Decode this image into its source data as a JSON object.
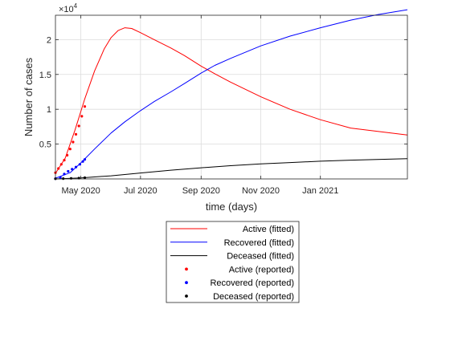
{
  "chart_data": {
    "type": "line",
    "title": "",
    "xlabel": "time (days)",
    "ylabel": "Number of cases",
    "y_exponent_label": "×10",
    "y_exponent_power": "4",
    "xlim": [
      "2020-04-05",
      "2021-03-31"
    ],
    "ylim": [
      0,
      23500
    ],
    "grid": true,
    "legend_position": "bottom-outside",
    "x_ticks": [
      {
        "label": "May 2020",
        "date": "2020-05-01"
      },
      {
        "label": "Jul 2020",
        "date": "2020-07-01"
      },
      {
        "label": "Sep 2020",
        "date": "2020-09-01"
      },
      {
        "label": "Nov 2020",
        "date": "2020-11-01"
      },
      {
        "label": "Jan 2021",
        "date": "2021-01-01"
      }
    ],
    "y_ticks": [
      {
        "label": "0.5",
        "value": 5000
      },
      {
        "label": "1",
        "value": 10000
      },
      {
        "label": "1.5",
        "value": 15000
      },
      {
        "label": "2",
        "value": 20000
      }
    ],
    "series": [
      {
        "name": "Active (fitted)",
        "style": "line",
        "color": "#ff0000",
        "x": [
          "2020-04-05",
          "2020-04-15",
          "2020-04-25",
          "2020-05-05",
          "2020-05-15",
          "2020-05-25",
          "2020-06-01",
          "2020-06-08",
          "2020-06-15",
          "2020-06-22",
          "2020-07-01",
          "2020-07-15",
          "2020-08-01",
          "2020-08-15",
          "2020-09-01",
          "2020-09-15",
          "2020-10-01",
          "2020-11-01",
          "2020-12-01",
          "2021-01-01",
          "2021-02-01",
          "2021-03-31"
        ],
        "y": [
          800,
          3000,
          7000,
          11500,
          15500,
          18700,
          20300,
          21300,
          21700,
          21600,
          21000,
          20000,
          18800,
          17700,
          16200,
          15100,
          13900,
          11800,
          10000,
          8500,
          7300,
          6300
        ]
      },
      {
        "name": "Recovered (fitted)",
        "style": "line",
        "color": "#0000ff",
        "x": [
          "2020-04-05",
          "2020-04-20",
          "2020-05-01",
          "2020-05-15",
          "2020-06-01",
          "2020-06-15",
          "2020-07-01",
          "2020-07-15",
          "2020-08-01",
          "2020-08-15",
          "2020-09-01",
          "2020-09-15",
          "2020-10-01",
          "2020-11-01",
          "2020-12-01",
          "2021-01-01",
          "2021-02-01",
          "2021-03-01",
          "2021-03-31"
        ],
        "y": [
          100,
          900,
          2300,
          4300,
          6600,
          8200,
          9800,
          11100,
          12500,
          13700,
          15200,
          16300,
          17300,
          19100,
          20500,
          21700,
          22800,
          23600,
          24300
        ]
      },
      {
        "name": "Deceased (fitted)",
        "style": "line",
        "color": "#000000",
        "x": [
          "2020-04-05",
          "2020-05-01",
          "2020-06-01",
          "2020-07-01",
          "2020-08-01",
          "2020-09-01",
          "2020-10-01",
          "2020-11-01",
          "2020-12-01",
          "2021-01-01",
          "2021-02-01",
          "2021-03-31"
        ],
        "y": [
          0,
          150,
          450,
          850,
          1250,
          1600,
          1900,
          2150,
          2350,
          2550,
          2700,
          2900
        ]
      },
      {
        "name": "Active (reported)",
        "style": "points",
        "color": "#ff0000",
        "x": [
          "2020-04-05",
          "2020-04-08",
          "2020-04-11",
          "2020-04-14",
          "2020-04-17",
          "2020-04-20",
          "2020-04-23",
          "2020-04-26",
          "2020-04-29",
          "2020-05-02",
          "2020-05-05"
        ],
        "y": [
          900,
          1500,
          2100,
          2700,
          3400,
          4300,
          5300,
          6400,
          7600,
          9000,
          10400
        ]
      },
      {
        "name": "Recovered (reported)",
        "style": "points",
        "color": "#0000ff",
        "x": [
          "2020-04-05",
          "2020-04-10",
          "2020-04-14",
          "2020-04-18",
          "2020-04-22",
          "2020-04-26",
          "2020-04-30",
          "2020-05-03",
          "2020-05-05"
        ],
        "y": [
          50,
          200,
          700,
          1100,
          1400,
          1700,
          2100,
          2500,
          2800
        ]
      },
      {
        "name": "Deceased  (reported)",
        "style": "points",
        "color": "#000000",
        "x": [
          "2020-04-05",
          "2020-04-13",
          "2020-04-21",
          "2020-04-29",
          "2020-05-05"
        ],
        "y": [
          20,
          50,
          80,
          120,
          170
        ]
      }
    ]
  }
}
